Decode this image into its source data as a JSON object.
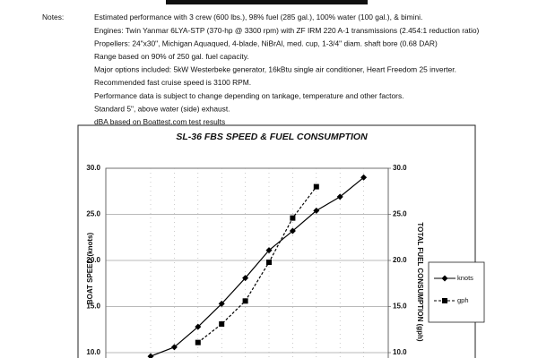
{
  "notes": {
    "label": "Notes:",
    "lines": [
      "Estimated performance with 3 crew (600 lbs.), 98% fuel (285 gal.), 100% water (100 gal.), & bimini.",
      "Engines: Twin Yanmar 6LYA-STP (370-hp @ 3300 rpm) with ZF IRM 220 A-1 transmissions (2.454:1 reduction ratio)",
      "Propellers: 24\"x30\", Michigan Aquaqued, 4-blade, NiBrAl, med. cup, 1-3/4\" diam. shaft bore (0.68 DAR)",
      "Range based on 90% of 250 gal. fuel capacity.",
      "Major options included:  5kW Westerbeke generator, 16kBtu single air conditioner, Heart Freedom 25 inverter.",
      "Recommended fast cruise speed is 3100 RPM.",
      "Performance data is subject to change depending on tankage, temperature and other factors.",
      "Standard 5\", above water (side) exhaust.",
      "dBA based on Boattest.com test results"
    ]
  },
  "chart_data": {
    "type": "line",
    "title": "SL-36 FBS SPEED & FUEL CONSUMPTION",
    "y_label": "BOAT SPEED (knots)",
    "y2_label": "TOTAL FUEL CONSUMPTION (gph)",
    "categories": [
      null,
      null,
      null,
      null,
      null,
      null,
      null,
      null,
      null,
      null
    ],
    "series": [
      {
        "name": "knots",
        "color": "#000000",
        "dash": false,
        "marker": "diamond",
        "values": [
          9.6,
          10.6,
          12.8,
          15.3,
          18.1,
          21.1,
          23.2,
          25.4,
          26.9,
          29.0
        ]
      },
      {
        "name": "gph",
        "color": "#000000",
        "dash": true,
        "marker": "square",
        "axis": "y2",
        "values": [
          null,
          null,
          11.1,
          13.1,
          15.6,
          19.8,
          24.6,
          28.0,
          null,
          null
        ]
      }
    ],
    "ylim": [
      0,
      30
    ],
    "yticks": [
      {
        "value": 10,
        "label": "10.0"
      },
      {
        "value": 15,
        "label": "15.0"
      },
      {
        "value": 20,
        "label": "20.0"
      },
      {
        "value": 25,
        "label": "25.0"
      },
      {
        "value": 30,
        "label": "30.0"
      }
    ],
    "y2lim": [
      0,
      30
    ],
    "y2ticks": [
      {
        "value": 10,
        "label": "10.0"
      },
      {
        "value": 15,
        "label": "15.0"
      },
      {
        "value": 20,
        "label": "20.0"
      },
      {
        "value": 25,
        "label": "25.0"
      },
      {
        "value": 30,
        "label": "30.0"
      }
    ],
    "grid": true,
    "legend": "right"
  }
}
